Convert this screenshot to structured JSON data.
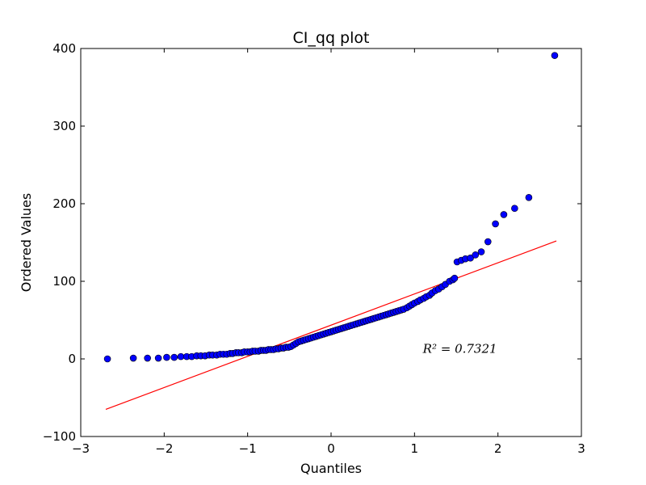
{
  "chart_data": {
    "type": "scatter",
    "title": "CI_qq plot",
    "xlabel": "Quantiles",
    "ylabel": "Ordered Values",
    "xlim": [
      -3,
      3
    ],
    "ylim": [
      -100,
      400
    ],
    "xticks": [
      -3,
      -2,
      -1,
      0,
      1,
      2,
      3
    ],
    "yticks": [
      -100,
      0,
      100,
      200,
      300,
      400
    ],
    "xtick_labels": [
      "−3",
      "−2",
      "−1",
      "0",
      "1",
      "2",
      "3"
    ],
    "ytick_labels": [
      "−100",
      "0",
      "100",
      "200",
      "300",
      "400"
    ],
    "grid": false,
    "point_color": "#0000ff",
    "point_edge_color": "#000000",
    "line_color": "#ff0000",
    "fit_line": {
      "x": [
        -2.7,
        2.7
      ],
      "y": [
        -65,
        152
      ]
    },
    "annotation": {
      "text": "R² = 0.7321",
      "x": 1.1,
      "y": 8
    },
    "series": [
      {
        "x": [
          -2.68,
          -2.37,
          -2.2,
          -2.07,
          -1.97,
          -1.88,
          -1.8,
          -1.73,
          -1.67,
          -1.61,
          -1.56,
          -1.51,
          -1.46,
          -1.42,
          -1.37,
          -1.33,
          -1.29,
          -1.25,
          -1.21,
          -1.18,
          -1.14,
          -1.11,
          -1.07,
          -1.04,
          -1.0,
          -0.97,
          -0.94,
          -0.91,
          -0.87,
          -0.84,
          -0.81,
          -0.78,
          -0.75,
          -0.72,
          -0.69,
          -0.66,
          -0.63,
          -0.6,
          -0.57,
          -0.54,
          -0.51,
          -0.48,
          -0.45,
          -0.42,
          -0.39,
          -0.36,
          -0.33,
          -0.3,
          -0.27,
          -0.24,
          -0.21,
          -0.18,
          -0.15,
          -0.12,
          -0.09,
          -0.06,
          -0.03,
          0.0,
          0.03,
          0.06,
          0.09,
          0.12,
          0.15,
          0.18,
          0.21,
          0.24,
          0.27,
          0.3,
          0.33,
          0.36,
          0.39,
          0.42,
          0.45,
          0.48,
          0.51,
          0.54,
          0.57,
          0.6,
          0.63,
          0.66,
          0.69,
          0.72,
          0.75,
          0.78,
          0.81,
          0.84,
          0.87,
          0.91,
          0.94,
          0.97,
          1.0,
          1.04,
          1.07,
          1.11,
          1.14,
          1.18,
          1.21,
          1.25,
          1.29,
          1.33,
          1.37,
          1.42,
          1.46,
          1.48,
          1.51,
          1.56,
          1.61,
          1.67,
          1.73,
          1.8,
          1.88,
          1.97,
          2.07,
          2.2,
          2.37,
          2.68
        ],
        "y": [
          0,
          1,
          1,
          1,
          2,
          2,
          3,
          3,
          3,
          4,
          4,
          4,
          5,
          5,
          5,
          6,
          6,
          6,
          7,
          7,
          8,
          8,
          8,
          9,
          9,
          9,
          10,
          10,
          10,
          11,
          11,
          11,
          12,
          12,
          12,
          13,
          13,
          14,
          14,
          15,
          15,
          16,
          18,
          20,
          22,
          23,
          24,
          25,
          26,
          27,
          28,
          29,
          30,
          31,
          32,
          33,
          34,
          35,
          36,
          37,
          38,
          39,
          40,
          41,
          42,
          43,
          44,
          45,
          46,
          47,
          48,
          49,
          50,
          51,
          52,
          53,
          54,
          55,
          56,
          57,
          58,
          59,
          60,
          61,
          62,
          63,
          64,
          66,
          68,
          70,
          72,
          74,
          76,
          78,
          80,
          82,
          85,
          88,
          90,
          93,
          96,
          100,
          102,
          104,
          125,
          127,
          129,
          130,
          134,
          138,
          151,
          174,
          186,
          194,
          208,
          391
        ]
      }
    ]
  }
}
